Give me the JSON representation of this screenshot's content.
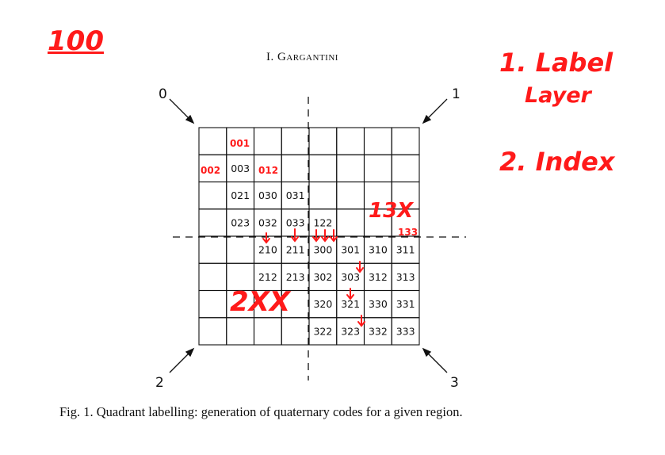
{
  "header": {
    "author": "I. Gargantini"
  },
  "figure": {
    "caption": "Fig. 1. Quadrant labelling: generation of quaternary codes for a given region.",
    "corners": [
      "0",
      "1",
      "2",
      "3"
    ],
    "grid": {
      "rows": 8,
      "cols": 8
    },
    "cells": [
      {
        "row": 2,
        "col": 1,
        "code": "003"
      },
      {
        "row": 3,
        "col": 1,
        "code": "021"
      },
      {
        "row": 3,
        "col": 2,
        "code": "030"
      },
      {
        "row": 3,
        "col": 3,
        "code": "031"
      },
      {
        "row": 4,
        "col": 1,
        "code": "023"
      },
      {
        "row": 4,
        "col": 2,
        "code": "032"
      },
      {
        "row": 4,
        "col": 3,
        "code": "033"
      },
      {
        "row": 4,
        "col": 4,
        "code": "122"
      },
      {
        "row": 5,
        "col": 2,
        "code": "210"
      },
      {
        "row": 5,
        "col": 3,
        "code": "211"
      },
      {
        "row": 5,
        "col": 4,
        "code": "300"
      },
      {
        "row": 5,
        "col": 5,
        "code": "301"
      },
      {
        "row": 5,
        "col": 6,
        "code": "310"
      },
      {
        "row": 5,
        "col": 7,
        "code": "311"
      },
      {
        "row": 6,
        "col": 2,
        "code": "212"
      },
      {
        "row": 6,
        "col": 3,
        "code": "213"
      },
      {
        "row": 6,
        "col": 4,
        "code": "302"
      },
      {
        "row": 6,
        "col": 5,
        "code": "303"
      },
      {
        "row": 6,
        "col": 6,
        "code": "312"
      },
      {
        "row": 6,
        "col": 7,
        "code": "313"
      },
      {
        "row": 7,
        "col": 4,
        "code": "320"
      },
      {
        "row": 7,
        "col": 5,
        "code": "321"
      },
      {
        "row": 7,
        "col": 6,
        "code": "330"
      },
      {
        "row": 7,
        "col": 7,
        "code": "331"
      },
      {
        "row": 8,
        "col": 4,
        "code": "322"
      },
      {
        "row": 8,
        "col": 5,
        "code": "323"
      },
      {
        "row": 8,
        "col": 6,
        "code": "332"
      },
      {
        "row": 8,
        "col": 7,
        "code": "333"
      }
    ]
  },
  "annotations": {
    "score": "100",
    "step1_line1": "1. Label",
    "step1_line2": "Layer",
    "step2": "2. Index",
    "cell_001": "001",
    "cell_002": "002",
    "cell_012": "012",
    "mark_13x": "13X",
    "mark_133": "133",
    "mark_2xx": "2XX",
    "ink_color": "#ff1a1a"
  }
}
